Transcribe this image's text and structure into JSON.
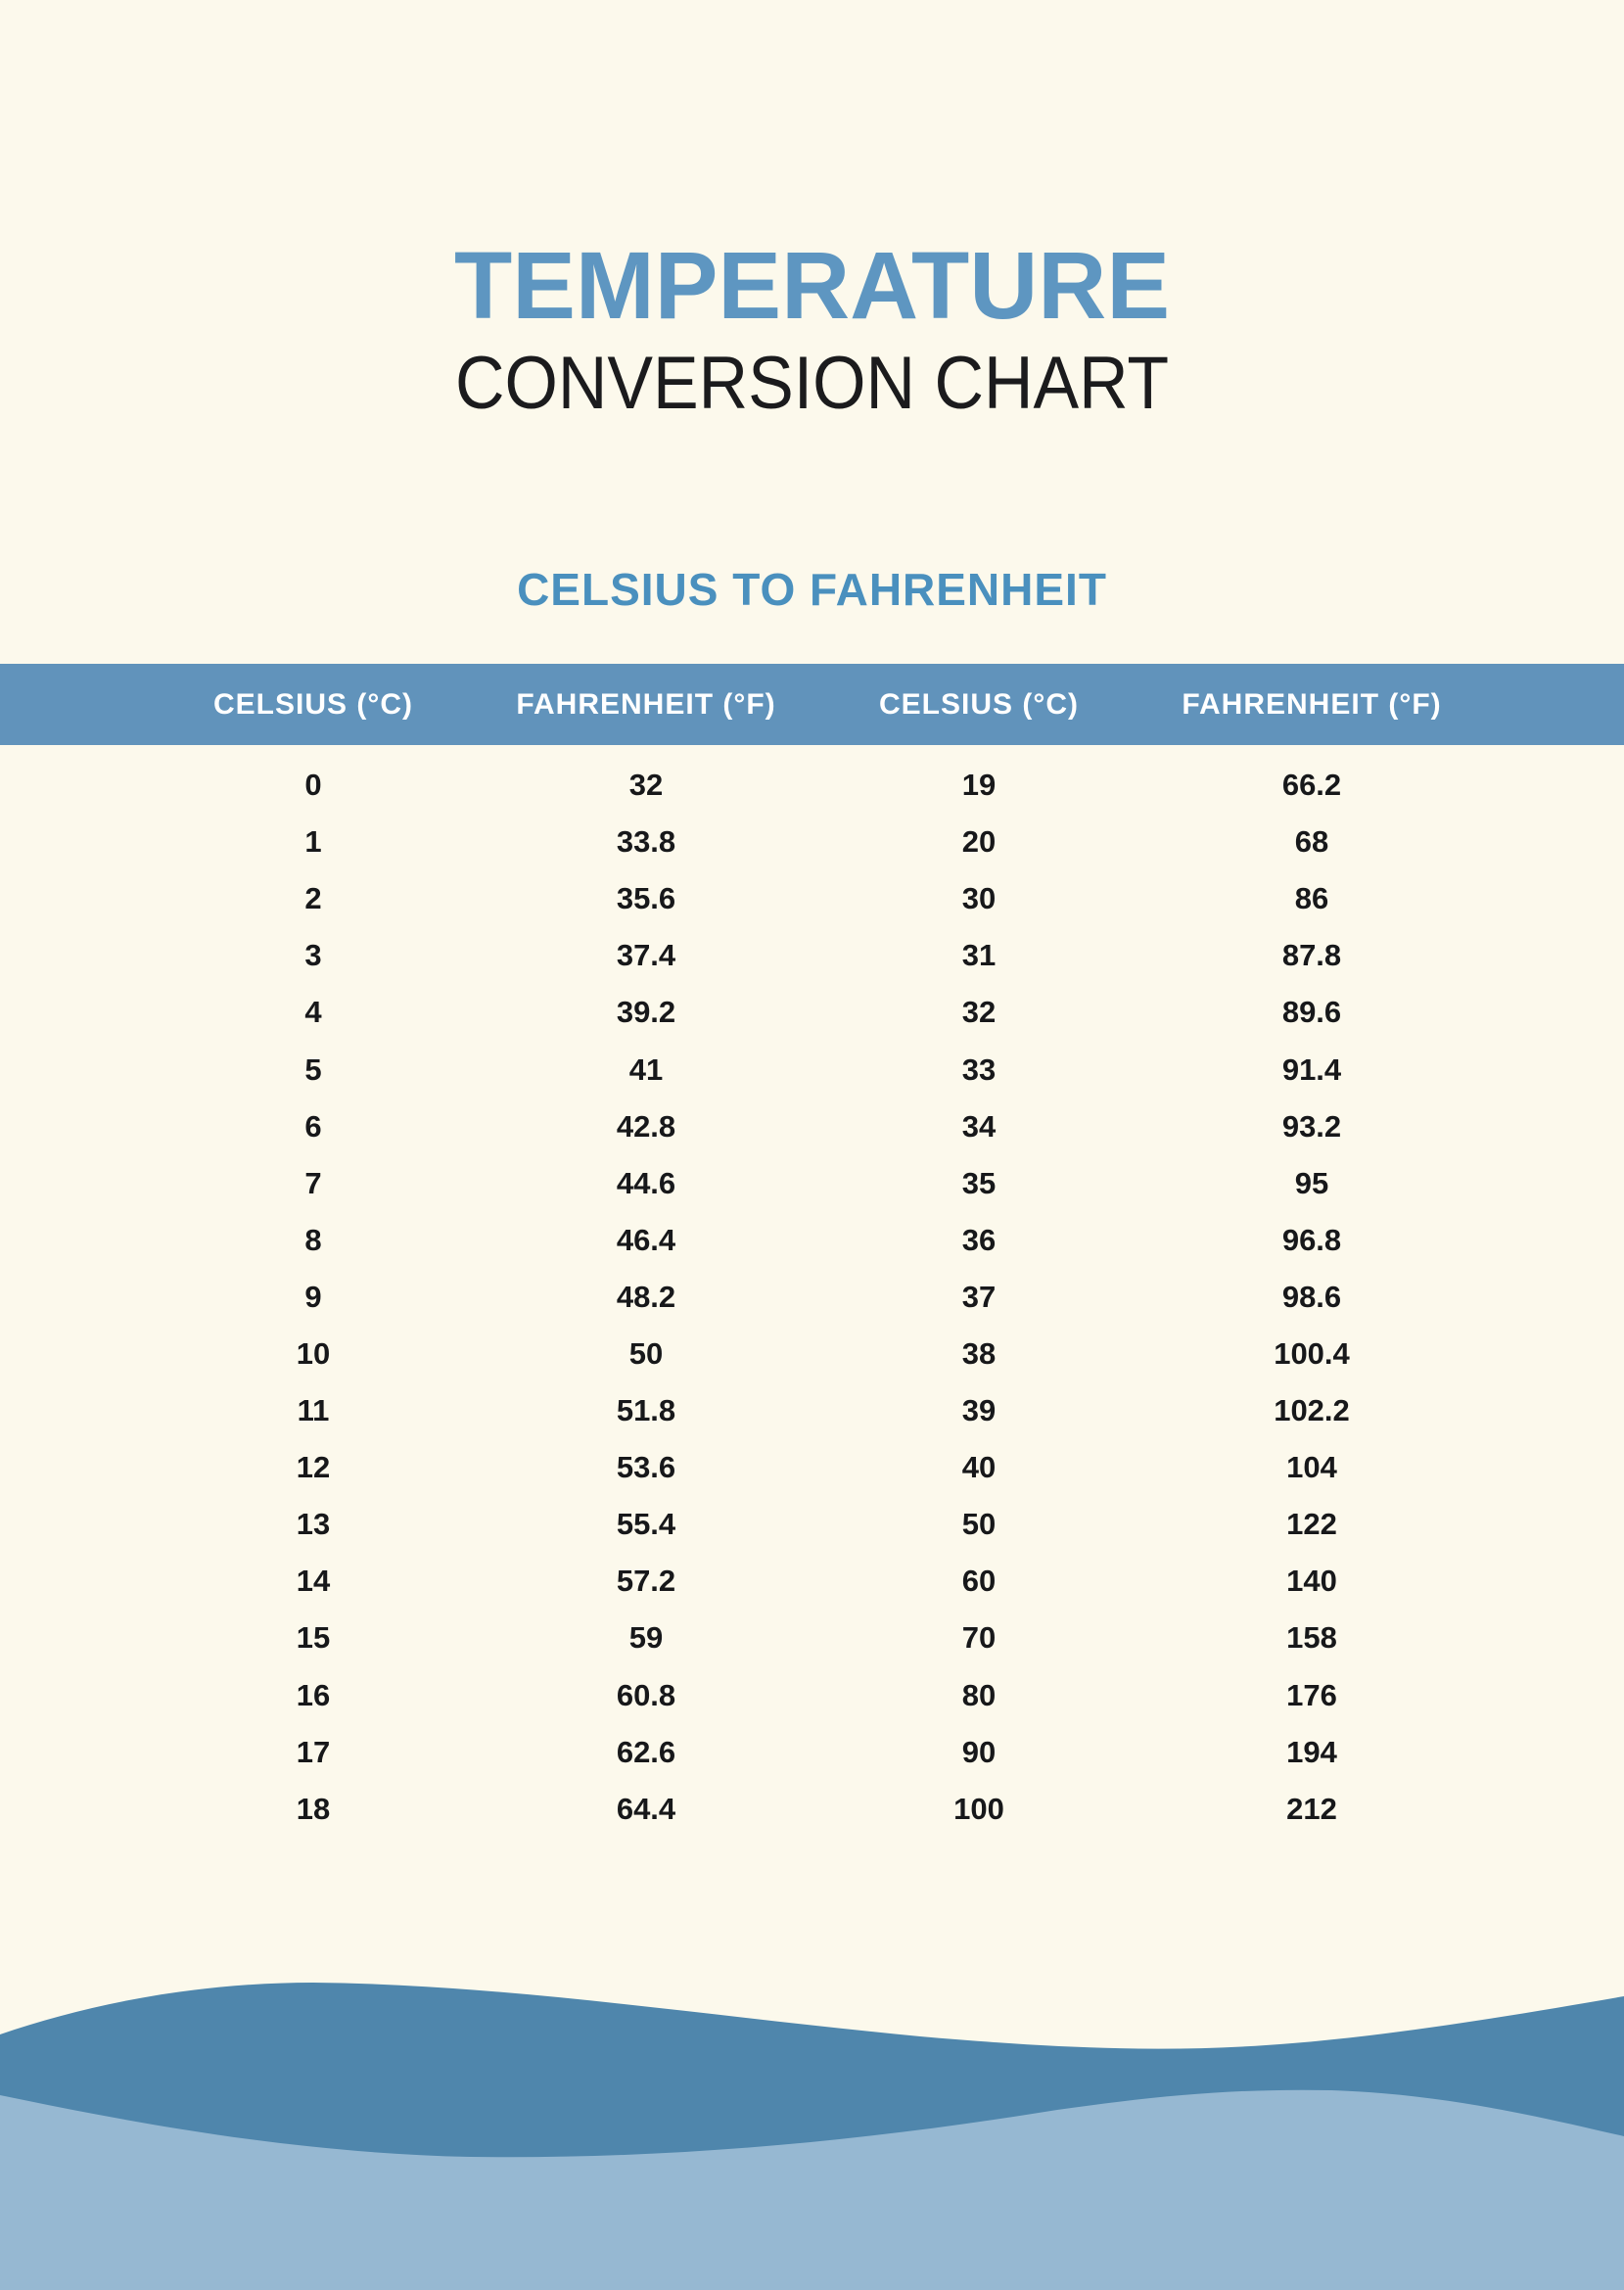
{
  "page": {
    "title": "TEMPERATURE",
    "subtitle": "CONVERSION CHART",
    "section_heading": "CELSIUS TO FAHRENHEIT"
  },
  "table": {
    "headers": [
      "CELSIUS (°C)",
      "FAHRENHEIT (°F)",
      "CELSIUS (°C)",
      "FAHRENHEIT (°F)"
    ],
    "rows": [
      [
        "0",
        "32",
        "19",
        "66.2"
      ],
      [
        "1",
        "33.8",
        "20",
        "68"
      ],
      [
        "2",
        "35.6",
        "30",
        "86"
      ],
      [
        "3",
        "37.4",
        "31",
        "87.8"
      ],
      [
        "4",
        "39.2",
        "32",
        "89.6"
      ],
      [
        "5",
        "41",
        "33",
        "91.4"
      ],
      [
        "6",
        "42.8",
        "34",
        "93.2"
      ],
      [
        "7",
        "44.6",
        "35",
        "95"
      ],
      [
        "8",
        "46.4",
        "36",
        "96.8"
      ],
      [
        "9",
        "48.2",
        "37",
        "98.6"
      ],
      [
        "10",
        "50",
        "38",
        "100.4"
      ],
      [
        "11",
        "51.8",
        "39",
        "102.2"
      ],
      [
        "12",
        "53.6",
        "40",
        "104"
      ],
      [
        "13",
        "55.4",
        "50",
        "122"
      ],
      [
        "14",
        "57.2",
        "60",
        "140"
      ],
      [
        "15",
        "59",
        "70",
        "158"
      ],
      [
        "16",
        "60.8",
        "80",
        "176"
      ],
      [
        "17",
        "62.6",
        "90",
        "194"
      ],
      [
        "18",
        "64.4",
        "100",
        "212"
      ]
    ]
  },
  "colors": {
    "background_cream": "#FCF9EC",
    "title_blue": "#5E96C1",
    "section_heading_blue": "#4A90BE",
    "header_band_blue": "#6193BB",
    "header_text": "#FFFFFF",
    "body_text": "#17181A",
    "wave_dark_blue": "#4F86AC",
    "wave_light_blue": "#96B8D2"
  }
}
